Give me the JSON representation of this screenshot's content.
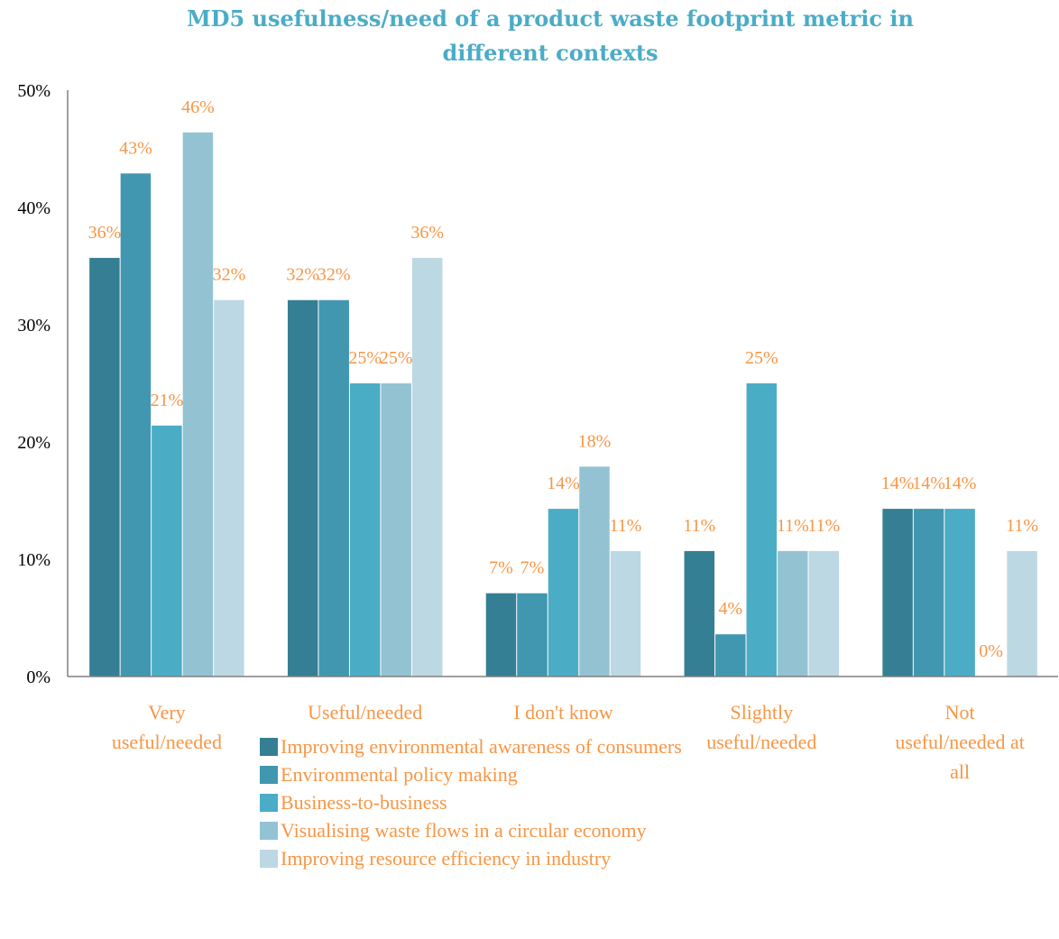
{
  "chart_data": {
    "type": "bar",
    "title": "MD5 usefulness/need of a product waste footprint metric in different contexts",
    "categories": [
      [
        "Very",
        "useful/needed"
      ],
      [
        "Useful/needed"
      ],
      [
        "I don't know"
      ],
      [
        "Slightly",
        "useful/needed"
      ],
      [
        "Not",
        "useful/needed at",
        "all"
      ]
    ],
    "series": [
      {
        "name": "Improving environmental awareness of consumers",
        "color": "#357F94",
        "values": [
          36,
          32,
          7,
          11,
          14
        ]
      },
      {
        "name": "Environmental policy making",
        "color": "#4197AF",
        "values": [
          43,
          32,
          7,
          4,
          14
        ]
      },
      {
        "name": "Business-to-business",
        "color": "#4BACC6",
        "values": [
          21,
          25,
          14,
          25,
          14
        ]
      },
      {
        "name": "Visualising waste flows in a circular economy",
        "color": "#93C3D3",
        "values": [
          46,
          25,
          18,
          11,
          0
        ]
      },
      {
        "name": "Improving resource efficiency in industry",
        "color": "#BCD8E3",
        "values": [
          32,
          36,
          11,
          11,
          11
        ]
      }
    ],
    "exact_values": [
      [
        35.7,
        32.1,
        7.1,
        10.7,
        14.3
      ],
      [
        42.9,
        32.1,
        7.1,
        3.6,
        14.3
      ],
      [
        21.4,
        25.0,
        14.3,
        25.0,
        14.3
      ],
      [
        46.4,
        25.0,
        17.9,
        10.7,
        0
      ],
      [
        32.1,
        35.7,
        10.7,
        10.7,
        10.7
      ]
    ],
    "data_labels": [
      [
        "36%",
        "32%",
        "7%",
        "11%",
        "14%"
      ],
      [
        "43%",
        "32%",
        "7%",
        "4%",
        "14%"
      ],
      [
        "21%",
        "25%",
        "14%",
        "25%",
        "14%"
      ],
      [
        "46%",
        "25%",
        "18%",
        "11%",
        "0%"
      ],
      [
        "32%",
        "36%",
        "11%",
        "11%",
        "11%"
      ]
    ],
    "y_ticks": [
      "0%",
      "10%",
      "20%",
      "30%",
      "40%",
      "50%"
    ],
    "ylim": [
      0,
      50
    ],
    "label_color": "#F79646",
    "grid": false,
    "legend_position": "bottom"
  }
}
